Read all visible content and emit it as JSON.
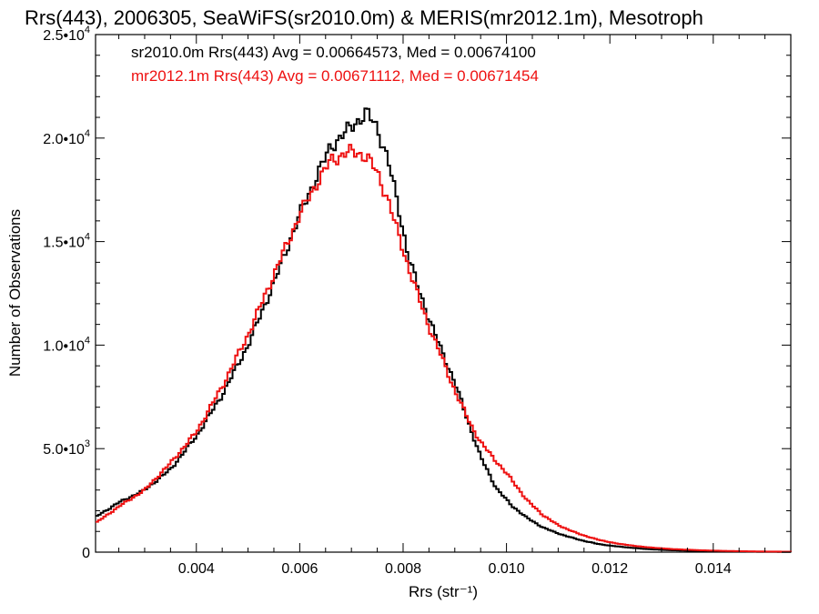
{
  "chart_data": {
    "type": "line",
    "title": "Rrs(443), 2006305, SeaWiFS(sr2010.0m) & MERIS(mr2012.1m), Mesotroph",
    "xlabel": "Rrs (str⁻¹)",
    "ylabel": "Number of Observations",
    "xlim": [
      0.00205,
      0.0155
    ],
    "ylim": [
      0,
      25000
    ],
    "grid": false,
    "legend_placement": "top-left",
    "x_ticks": [
      0.004,
      0.006,
      0.008,
      0.01,
      0.012,
      0.014
    ],
    "x_tick_labels": [
      "0.004",
      "0.006",
      "0.008",
      "0.010",
      "0.012",
      "0.014"
    ],
    "y_ticks": [
      0,
      5000,
      10000,
      15000,
      20000,
      25000
    ],
    "y_tick_labels": [
      {
        "mant": "0",
        "exp": ""
      },
      {
        "mant": "5.0•10",
        "exp": "3"
      },
      {
        "mant": "1.0•10",
        "exp": "4"
      },
      {
        "mant": "1.5•10",
        "exp": "4"
      },
      {
        "mant": "2.0•10",
        "exp": "4"
      },
      {
        "mant": "2.5•10",
        "exp": "4"
      }
    ],
    "series": [
      {
        "name": "sr2010.0m",
        "color": "#000000",
        "x": [
          0.00205,
          0.0025,
          0.003,
          0.0035,
          0.004,
          0.0045,
          0.005,
          0.0055,
          0.006,
          0.0063,
          0.0066,
          0.0069,
          0.0071,
          0.0073,
          0.0075,
          0.0077,
          0.0079,
          0.0081,
          0.0083,
          0.0085,
          0.0087,
          0.009,
          0.0093,
          0.0095,
          0.0098,
          0.0101,
          0.0104,
          0.0107,
          0.011,
          0.0114,
          0.0118,
          0.0122,
          0.0127,
          0.0132,
          0.0137,
          0.0142,
          0.0148,
          0.0155
        ],
        "y": [
          1700,
          2400,
          3000,
          4000,
          5600,
          7600,
          10000,
          13000,
          16300,
          18000,
          19600,
          20300,
          20800,
          21200,
          20500,
          19000,
          16800,
          14300,
          12700,
          11300,
          10000,
          8200,
          6000,
          4600,
          3100,
          2250,
          1650,
          1200,
          900,
          600,
          380,
          260,
          150,
          90,
          55,
          35,
          20,
          10
        ]
      },
      {
        "name": "mr2012.1m",
        "color": "#ee1111",
        "x": [
          0.00205,
          0.0025,
          0.003,
          0.0035,
          0.004,
          0.0045,
          0.005,
          0.0055,
          0.006,
          0.0063,
          0.0066,
          0.0069,
          0.0071,
          0.0073,
          0.0075,
          0.0077,
          0.0079,
          0.0081,
          0.0083,
          0.0085,
          0.0087,
          0.009,
          0.0093,
          0.0095,
          0.0098,
          0.0101,
          0.0104,
          0.0107,
          0.011,
          0.0114,
          0.0118,
          0.0122,
          0.0127,
          0.0132,
          0.0137,
          0.0142,
          0.0148,
          0.0155
        ],
        "y": [
          1400,
          2200,
          3000,
          4300,
          5800,
          8000,
          10500,
          13400,
          16300,
          17700,
          18900,
          19300,
          19300,
          19100,
          18300,
          17100,
          15400,
          13800,
          12300,
          10900,
          9700,
          7800,
          6200,
          5300,
          4400,
          3500,
          2500,
          1800,
          1300,
          880,
          580,
          390,
          240,
          150,
          95,
          60,
          35,
          20
        ]
      }
    ],
    "annotations": [
      {
        "text": "sr2010.0m Rrs(443) Avg = 0.00664573, Med = 0.00674100",
        "color": "#000000"
      },
      {
        "text": "mr2012.1m Rrs(443) Avg = 0.00671112, Med = 0.00671454",
        "color": "#ee1111"
      }
    ]
  }
}
